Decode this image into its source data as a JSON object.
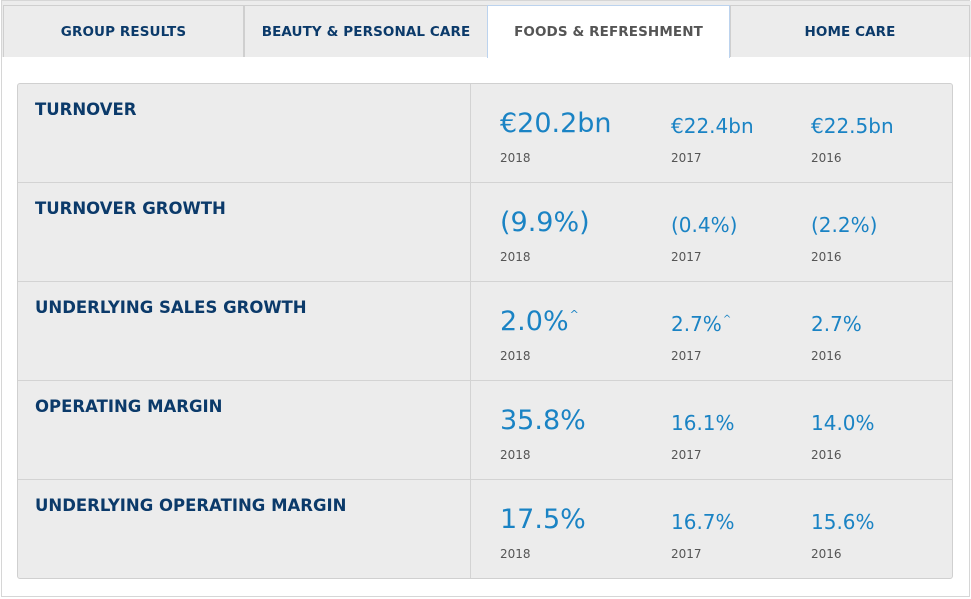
{
  "tabs": [
    {
      "label": "GROUP RESULTS"
    },
    {
      "label": "BEAUTY & PERSONAL CARE"
    },
    {
      "label": "FOODS & REFRESHMENT"
    },
    {
      "label": "HOME CARE"
    }
  ],
  "active_tab": "FOODS & REFRESHMENT",
  "colors": {
    "metric_label": "#0b3a6a",
    "value": "#1a83c4",
    "year": "#555555",
    "panel_bg": "#ececec"
  },
  "rows": [
    {
      "metric": "TURNOVER",
      "values": [
        {
          "value": "€20.2bn",
          "mark": "",
          "year": "2018"
        },
        {
          "value": "€22.4bn",
          "mark": "",
          "year": "2017"
        },
        {
          "value": "€22.5bn",
          "mark": "",
          "year": "2016"
        }
      ]
    },
    {
      "metric": "TURNOVER GROWTH",
      "values": [
        {
          "value": "(9.9%)",
          "mark": "",
          "year": "2018"
        },
        {
          "value": "(0.4%)",
          "mark": "",
          "year": "2017"
        },
        {
          "value": "(2.2%)",
          "mark": "",
          "year": "2016"
        }
      ]
    },
    {
      "metric": "UNDERLYING SALES GROWTH",
      "values": [
        {
          "value": "2.0%",
          "mark": "^",
          "year": "2018"
        },
        {
          "value": "2.7%",
          "mark": "^",
          "year": "2017"
        },
        {
          "value": "2.7%",
          "mark": "",
          "year": "2016"
        }
      ]
    },
    {
      "metric": "OPERATING MARGIN",
      "values": [
        {
          "value": "35.8%",
          "mark": "",
          "year": "2018"
        },
        {
          "value": "16.1%",
          "mark": "",
          "year": "2017"
        },
        {
          "value": "14.0%",
          "mark": "",
          "year": "2016"
        }
      ]
    },
    {
      "metric": "UNDERLYING OPERATING MARGIN",
      "values": [
        {
          "value": "17.5%",
          "mark": "",
          "year": "2018"
        },
        {
          "value": "16.7%",
          "mark": "",
          "year": "2017"
        },
        {
          "value": "15.6%",
          "mark": "",
          "year": "2016"
        }
      ]
    }
  ]
}
